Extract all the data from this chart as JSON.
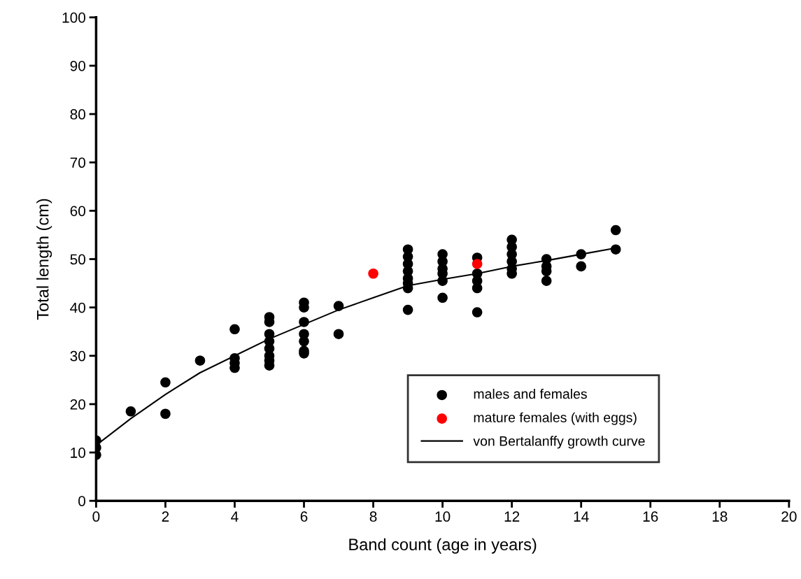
{
  "chart_data": {
    "type": "scatter",
    "xlabel": "Band count (age in years)",
    "ylabel": "Total length (cm)",
    "xlim": [
      0,
      20
    ],
    "xticks": [
      0,
      2,
      4,
      6,
      8,
      10,
      12,
      14,
      16,
      18,
      20
    ],
    "ylim": [
      0,
      100
    ],
    "yticks": [
      0,
      10,
      20,
      30,
      40,
      50,
      60,
      70,
      80,
      90,
      100
    ],
    "grid": false,
    "legend": "bottom right",
    "marker": "circle",
    "series": [
      {
        "name": "males and females",
        "color": "#000000",
        "x": [
          0,
          0,
          0,
          1,
          2,
          2,
          3,
          4,
          4,
          4,
          4,
          5,
          5,
          5,
          5,
          5,
          5,
          5,
          5,
          6,
          6,
          6,
          6,
          6,
          6,
          6,
          7,
          7,
          9,
          9,
          9,
          9,
          9,
          9,
          9,
          9,
          10,
          10,
          10,
          10,
          10,
          10,
          11,
          11,
          11,
          11,
          11,
          12,
          12,
          12,
          12,
          12,
          12,
          13,
          13,
          13,
          13,
          14,
          14,
          15,
          15
        ],
        "values": [
          9.5,
          11,
          12.5,
          18.5,
          24.5,
          18,
          29,
          35.5,
          29.5,
          28.5,
          27.5,
          38,
          37,
          34.5,
          33,
          31.5,
          30,
          29,
          28,
          41,
          40,
          37,
          34.5,
          33,
          31,
          30.5,
          40.3,
          34.5,
          52,
          50.5,
          49,
          47.5,
          46,
          45,
          44,
          39.5,
          51,
          49.5,
          48,
          47,
          45.5,
          42,
          50.3,
          47,
          45.5,
          44,
          39,
          54,
          52.5,
          51,
          49.5,
          48,
          47,
          50,
          48.5,
          47.5,
          45.5,
          51,
          48.5,
          56,
          52
        ]
      },
      {
        "name": "mature females (with eggs)",
        "color": "#ff0000",
        "x": [
          8,
          11
        ],
        "values": [
          47,
          49
        ]
      },
      {
        "name": "von Bertalanffy growth curve",
        "type": "line",
        "color": "#000000",
        "marker": "none",
        "line_style": "solid",
        "x": [
          0,
          1,
          2,
          3,
          4,
          5,
          6,
          7,
          8,
          9,
          10,
          11,
          12,
          13,
          14,
          15
        ],
        "values": [
          11.5,
          17,
          22,
          26.5,
          30,
          33.5,
          36.5,
          39.5,
          42,
          44.5,
          45.8,
          47,
          48.5,
          49.7,
          51,
          52.3
        ]
      }
    ]
  }
}
